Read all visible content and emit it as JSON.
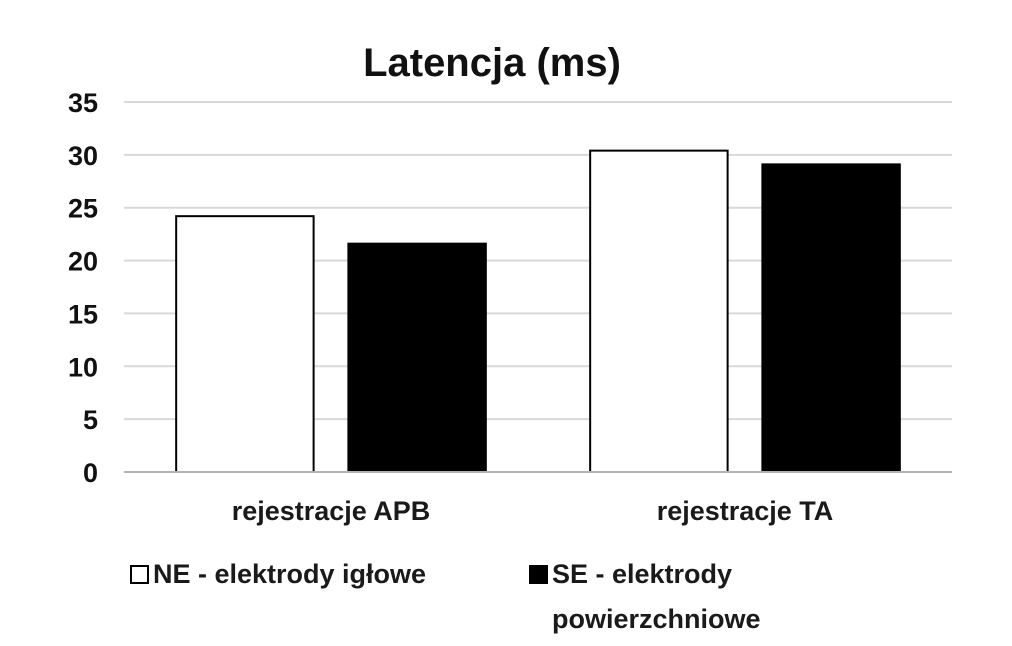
{
  "chart_data": {
    "type": "bar",
    "title": "Latencja (ms)",
    "xlabel": "",
    "ylabel": "",
    "categories": [
      "rejestracje APB",
      "rejestracje TA"
    ],
    "series": [
      {
        "name": "NE - elektrody igłowe",
        "legend_line_1": "NE - elektrody igłowe",
        "values": [
          24.2,
          30.4
        ],
        "color": "#ffffff",
        "stroke": "#000000"
      },
      {
        "name": "SE - elektrody powierzchniowe",
        "legend_line_1": "SE - elektrody",
        "legend_line_2": "powierzchniowe",
        "values": [
          21.6,
          29.1
        ],
        "color": "#000000",
        "stroke": "#000000"
      }
    ],
    "ylim": [
      0,
      35
    ],
    "yticks": [
      "0",
      "5",
      "10",
      "15",
      "20",
      "25",
      "30",
      "35"
    ],
    "grid": true,
    "legend_position": "bottom"
  }
}
